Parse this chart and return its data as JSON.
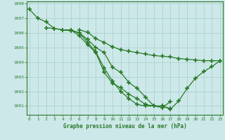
{
  "lines": [
    {
      "x": [
        0,
        1,
        2,
        3,
        4,
        5,
        6,
        7,
        8,
        9,
        10,
        11,
        12,
        13,
        14,
        15,
        16,
        17
      ],
      "y": [
        1007.6,
        1007.0,
        1006.75,
        1006.3,
        1006.2,
        1006.2,
        1005.8,
        1005.2,
        1004.65,
        1003.3,
        1002.55,
        1002.25,
        1001.8,
        1001.5,
        1001.1,
        1001.0,
        1001.0,
        1000.82
      ]
    },
    {
      "x": [
        2,
        3,
        4,
        5,
        6,
        7,
        8,
        9,
        10,
        11,
        12,
        13,
        14,
        15,
        16,
        17
      ],
      "y": [
        1006.35,
        1006.3,
        1006.2,
        1006.15,
        1006.0,
        1005.55,
        1005.0,
        1004.65,
        1003.65,
        1003.3,
        1002.6,
        1002.2,
        1001.6,
        1001.0,
        1000.9,
        1001.3
      ]
    },
    {
      "x": [
        4,
        5,
        6,
        7,
        8,
        9,
        10,
        11,
        12,
        13,
        14,
        15,
        16,
        17,
        18,
        19,
        20,
        21,
        22,
        23
      ],
      "y": [
        1006.2,
        1006.2,
        1006.0,
        1005.35,
        1004.7,
        1003.6,
        1002.7,
        1002.0,
        1001.5,
        1001.1,
        1001.0,
        1001.0,
        1001.0,
        1000.78,
        1001.35,
        1002.2,
        1002.9,
        1003.35,
        1003.7,
        1004.1
      ]
    },
    {
      "x": [
        6,
        7,
        8,
        9,
        10,
        11,
        12,
        13,
        14,
        15,
        16,
        17,
        18,
        19,
        20,
        21,
        22,
        23
      ],
      "y": [
        1006.2,
        1006.05,
        1005.6,
        1005.35,
        1005.05,
        1004.85,
        1004.75,
        1004.65,
        1004.55,
        1004.45,
        1004.4,
        1004.35,
        1004.25,
        1004.2,
        1004.15,
        1004.1,
        1004.1,
        1004.1
      ]
    }
  ],
  "line_color": "#2a7a2a",
  "marker": "+",
  "markersize": 4,
  "markeredgewidth": 1.2,
  "linewidth": 0.9,
  "xlim": [
    -0.3,
    23.3
  ],
  "ylim": [
    1000.4,
    1008.15
  ],
  "yticks": [
    1001,
    1002,
    1003,
    1004,
    1005,
    1006,
    1007,
    1008
  ],
  "xticks": [
    0,
    1,
    2,
    3,
    4,
    5,
    6,
    7,
    8,
    9,
    10,
    11,
    12,
    13,
    14,
    15,
    16,
    17,
    18,
    19,
    20,
    21,
    22,
    23
  ],
  "xlabel": "Graphe pression niveau de la mer (hPa)",
  "background_color": "#cce8e8",
  "grid_color": "#aacccc",
  "axis_color": "#2a7a2a",
  "tick_color": "#2a7a2a"
}
